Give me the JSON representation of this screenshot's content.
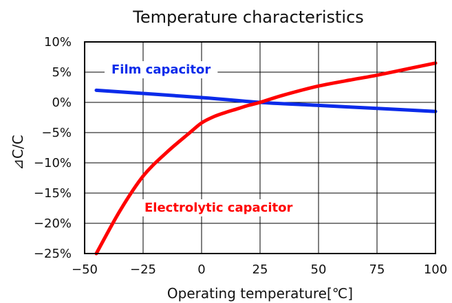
{
  "chart_data": {
    "type": "line",
    "title": "Temperature characteristics",
    "xlabel": "Operating temperature[℃]",
    "ylabel": "⊿C/C",
    "xlim": [
      -50,
      100
    ],
    "ylim": [
      -25,
      10
    ],
    "x_ticks": [
      -50,
      -25,
      0,
      25,
      50,
      75,
      100
    ],
    "x_tick_labels": [
      "−50",
      "−25",
      "0",
      "25",
      "50",
      "75",
      "100"
    ],
    "y_ticks": [
      10,
      5,
      0,
      -5,
      -10,
      -15,
      -20,
      -25
    ],
    "y_tick_labels": [
      "10%",
      "5%",
      "0%",
      "−5%",
      "−10%",
      "−15%",
      "−20%",
      "−25%"
    ],
    "grid": true,
    "series": [
      {
        "name": "Film capacitor",
        "color": "#0b2bea",
        "x": [
          -45,
          0,
          25,
          50,
          75,
          100
        ],
        "y": [
          2.0,
          0.8,
          0.0,
          -0.5,
          -1.0,
          -1.5
        ]
      },
      {
        "name": "Electrolytic capacitor",
        "color": "#ff0000",
        "x": [
          -45,
          -35,
          -25,
          -15,
          -5,
          0,
          5,
          10,
          15,
          20,
          25,
          35,
          50,
          65,
          75,
          90,
          100
        ],
        "y": [
          -25.0,
          -18.0,
          -12.2,
          -8.3,
          -5.0,
          -3.4,
          -2.4,
          -1.7,
          -1.1,
          -0.5,
          0.0,
          1.2,
          2.7,
          3.8,
          4.5,
          5.7,
          6.5
        ]
      }
    ]
  }
}
